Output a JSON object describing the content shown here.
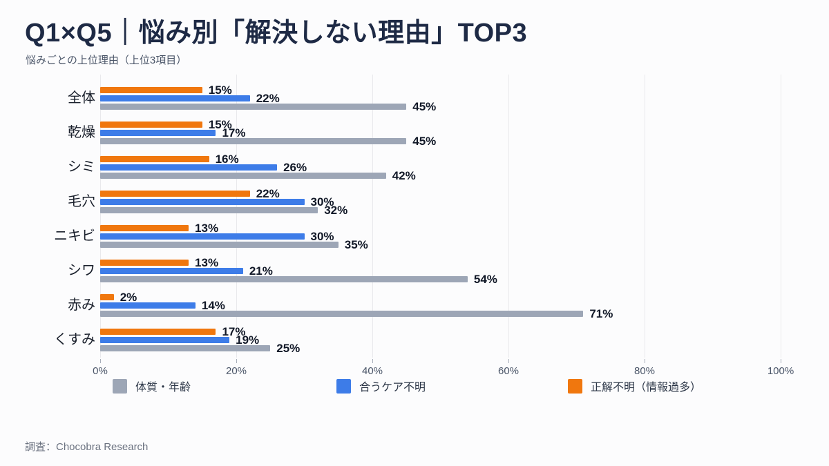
{
  "title": "Q1×Q5｜悩み別「解決しない理由」TOP3",
  "subtitle": "悩みごとの上位理由（上位3項目）",
  "source_note": "調査：Chocobra Research",
  "colors": {
    "title_text": "#1E2A45",
    "subtitle_text": "#4A5568",
    "value_label": "#111827",
    "category_label": "#1A202C",
    "tick_label": "#4A5568",
    "legend_label": "#2D3748",
    "source_text": "#6B7280",
    "gridline": "#E9E9EC",
    "background": "#FCFCFD",
    "series_orange": "#F0770E",
    "series_blue": "#3D7CE8",
    "series_gray": "#9DA6B6"
  },
  "chart_data": {
    "type": "bar",
    "orientation": "horizontal",
    "title": "Q1×Q5｜悩み別「解決しない理由」TOP3",
    "subtitle": "悩みごとの上位理由（上位3項目）",
    "categories": [
      "全体",
      "乾燥",
      "シミ",
      "毛穴",
      "ニキビ",
      "シワ",
      "赤み",
      "くすみ"
    ],
    "series": [
      {
        "name": "正解不明（情報過多）",
        "color": "#F0770E",
        "values": [
          15,
          15,
          16,
          22,
          13,
          13,
          2,
          17
        ]
      },
      {
        "name": "合うケア不明",
        "color": "#3D7CE8",
        "values": [
          22,
          17,
          26,
          30,
          30,
          21,
          14,
          19
        ]
      },
      {
        "name": "体質・年齢",
        "color": "#9DA6B6",
        "values": [
          45,
          45,
          42,
          32,
          35,
          54,
          71,
          25
        ]
      }
    ],
    "value_suffix": "%",
    "xlim": [
      0,
      100
    ],
    "x_ticks": [
      {
        "value": 0,
        "label": "0%"
      },
      {
        "value": 20,
        "label": "20%"
      },
      {
        "value": 40,
        "label": "40%"
      },
      {
        "value": 60,
        "label": "60%"
      },
      {
        "value": 80,
        "label": "80%"
      },
      {
        "value": 100,
        "label": "100%"
      }
    ],
    "grid": true,
    "legend_position": "bottom",
    "legend": [
      {
        "label": "体質・年齢",
        "color": "#9DA6B6"
      },
      {
        "label": "合うケア不明",
        "color": "#3D7CE8"
      },
      {
        "label": "正解不明（情報過多）",
        "color": "#F0770E"
      }
    ]
  }
}
